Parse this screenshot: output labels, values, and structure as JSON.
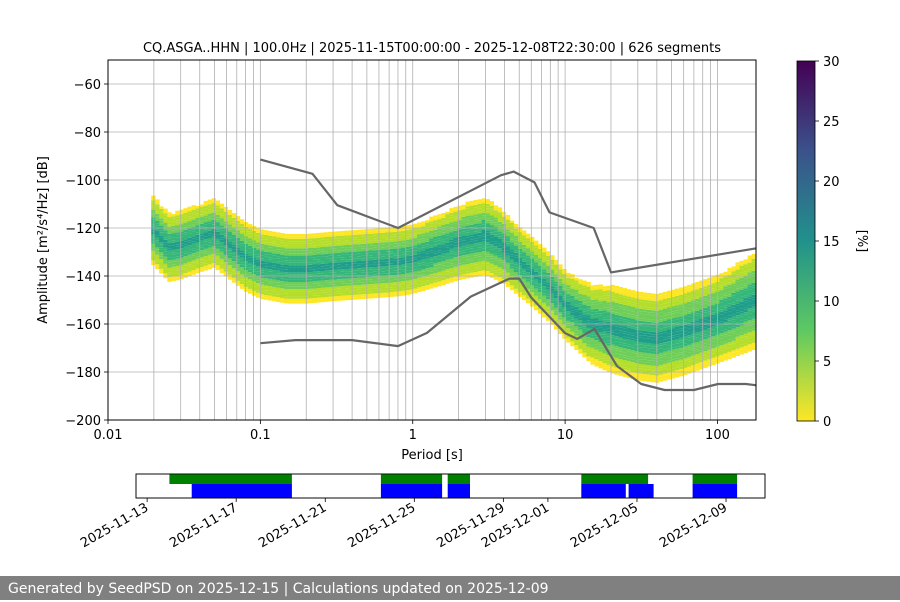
{
  "title": "CQ.ASGA..HHN | 100.0Hz | 2025-11-15T00:00:00 - 2025-12-08T22:30:00 | 626 segments",
  "footer": "Generated by SeedPSD on 2025-12-15 | Calculations updated on 2025-12-09",
  "colorbar": {
    "label": "[%]",
    "ticks": [
      0,
      5,
      10,
      15,
      20,
      25,
      30
    ],
    "range": [
      0,
      30
    ],
    "colormap": "viridis_r"
  },
  "colors": {
    "noise_model": "#666666",
    "grid": "#b0b0b0",
    "data_available": "#0000ff",
    "gap_free": "#008000",
    "footer_bg": "#808080"
  },
  "chart_data": [
    {
      "type": "heatmap",
      "title": "CQ.ASGA..HHN | 100.0Hz | 2025-11-15T00:00:00 - 2025-12-08T22:30:00 | 626 segments",
      "xlabel": "Period [s]",
      "ylabel": "Amplitude [m²/s⁴/Hz] [dB]",
      "xscale": "log",
      "xlim": [
        0.01,
        179
      ],
      "ylim": [
        -200,
        -50
      ],
      "xticks": [
        {
          "value": 0.01,
          "label": "0.01"
        },
        {
          "value": 0.1,
          "label": "0.1"
        },
        {
          "value": 1,
          "label": "1"
        },
        {
          "value": 10,
          "label": "10"
        },
        {
          "value": 100,
          "label": "100"
        }
      ],
      "yticks": [
        -60,
        -80,
        -100,
        -120,
        -140,
        -160,
        -180,
        -200
      ],
      "ytick_labels": [
        "−60",
        "−80",
        "−100",
        "−120",
        "−140",
        "−160",
        "−180",
        "−200"
      ],
      "grid": true,
      "psd_mode": [
        [
          0.02,
          -121
        ],
        [
          0.025,
          -128
        ],
        [
          0.03,
          -127
        ],
        [
          0.04,
          -124
        ],
        [
          0.05,
          -122
        ],
        [
          0.06,
          -126
        ],
        [
          0.08,
          -132
        ],
        [
          0.1,
          -135
        ],
        [
          0.15,
          -137
        ],
        [
          0.2,
          -137
        ],
        [
          0.3,
          -136
        ],
        [
          0.5,
          -135
        ],
        [
          0.8,
          -134
        ],
        [
          1.0,
          -133
        ],
        [
          1.5,
          -129
        ],
        [
          2.0,
          -126
        ],
        [
          3.0,
          -123
        ],
        [
          4.0,
          -128
        ],
        [
          5.0,
          -134
        ],
        [
          6.0,
          -138
        ],
        [
          8.0,
          -145
        ],
        [
          10.0,
          -152
        ],
        [
          15.0,
          -160
        ],
        [
          20.0,
          -162
        ],
        [
          30.0,
          -165
        ],
        [
          40.0,
          -166
        ],
        [
          60.0,
          -163
        ],
        [
          100.0,
          -158
        ],
        [
          178.0,
          -150
        ]
      ],
      "psd_spread": [
        [
          0.02,
          14
        ],
        [
          0.05,
          14
        ],
        [
          0.1,
          14
        ],
        [
          0.3,
          14
        ],
        [
          1.0,
          14
        ],
        [
          3.0,
          16
        ],
        [
          5.0,
          14
        ],
        [
          10.0,
          14
        ],
        [
          20.0,
          18
        ],
        [
          50.0,
          18
        ],
        [
          100.0,
          18
        ],
        [
          178.0,
          20
        ]
      ],
      "nhnm": [
        [
          0.1,
          -91.5
        ],
        [
          0.22,
          -97.4
        ],
        [
          0.32,
          -110.5
        ],
        [
          0.8,
          -120
        ],
        [
          3.8,
          -98
        ],
        [
          4.6,
          -96.5
        ],
        [
          6.3,
          -101
        ],
        [
          7.9,
          -113.5
        ],
        [
          15.4,
          -120
        ],
        [
          20,
          -138.5
        ],
        [
          178,
          -128.5
        ]
      ],
      "nlnm": [
        [
          0.1,
          -168
        ],
        [
          0.17,
          -166.7
        ],
        [
          0.4,
          -166.7
        ],
        [
          0.8,
          -169.2
        ],
        [
          1.24,
          -163.7
        ],
        [
          2.4,
          -148.6
        ],
        [
          4.3,
          -141.1
        ],
        [
          5.0,
          -141.1
        ],
        [
          6.0,
          -149
        ],
        [
          10,
          -163.8
        ],
        [
          12,
          -166.2
        ],
        [
          15.6,
          -162.1
        ],
        [
          21.9,
          -177.5
        ],
        [
          31.6,
          -185
        ],
        [
          45,
          -187.5
        ],
        [
          70,
          -187.5
        ],
        [
          101,
          -185
        ],
        [
          154,
          -185
        ],
        [
          178,
          -185.5
        ]
      ]
    },
    {
      "type": "timeline",
      "xlim": [
        "2025-11-12T12:00:00",
        "2025-12-10T18:00:00"
      ],
      "xticks": [
        "2025-11-13",
        "2025-11-17",
        "2025-11-21",
        "2025-11-25",
        "2025-11-29",
        "2025-12-01",
        "2025-12-05",
        "2025-12-09"
      ],
      "data_available": [
        [
          "2025-11-15T00:00:00",
          "2025-11-19T12:00:00"
        ],
        [
          "2025-11-23T12:00:00",
          "2025-11-26T06:00:00"
        ],
        [
          "2025-11-26T12:00:00",
          "2025-11-27T12:00:00"
        ],
        [
          "2025-12-02T12:00:00",
          "2025-12-04T12:00:00"
        ],
        [
          "2025-12-04T15:00:00",
          "2025-12-05T18:00:00"
        ],
        [
          "2025-12-07T12:00:00",
          "2025-12-09T12:00:00"
        ]
      ],
      "gap_free": [
        [
          "2025-11-14T00:00:00",
          "2025-11-19T12:00:00"
        ],
        [
          "2025-11-23T12:00:00",
          "2025-11-26T06:00:00"
        ],
        [
          "2025-11-26T12:00:00",
          "2025-11-27T12:00:00"
        ],
        [
          "2025-12-02T12:00:00",
          "2025-12-05T12:00:00"
        ],
        [
          "2025-12-07T12:00:00",
          "2025-12-09T12:00:00"
        ]
      ]
    }
  ]
}
